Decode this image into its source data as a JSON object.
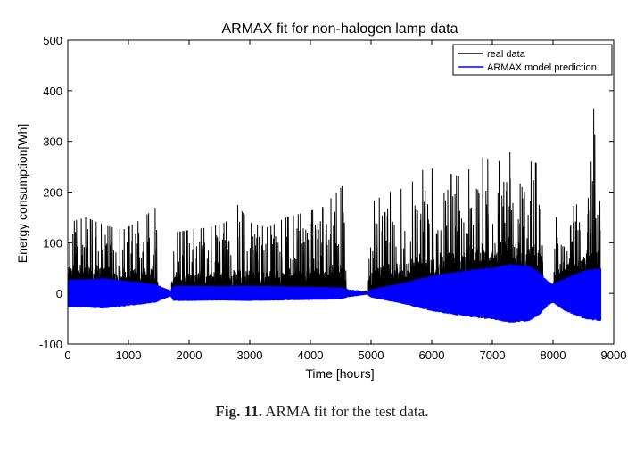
{
  "chart_data": {
    "type": "line",
    "title": "ARMAX fit for non-halogen lamp data",
    "xlabel": "Time [hours]",
    "ylabel": "Energy consumption[Wh]",
    "xlim": [
      0,
      9000
    ],
    "ylim": [
      -100,
      500
    ],
    "x_ticks": [
      "0",
      "1000",
      "2000",
      "3000",
      "4000",
      "5000",
      "6000",
      "7000",
      "8000",
      "9000"
    ],
    "y_ticks": [
      "-100",
      "0",
      "100",
      "200",
      "300",
      "400",
      "500"
    ],
    "grid": false,
    "legend_position": "top-right",
    "series": [
      {
        "name": "real data",
        "color": "#000000",
        "kind": "upper-envelope",
        "x": [
          0,
          300,
          600,
          900,
          1200,
          1450,
          1500,
          1700,
          1750,
          2000,
          2300,
          2600,
          2800,
          3000,
          3300,
          3600,
          3900,
          4200,
          4550,
          4600,
          4950,
          5000,
          5300,
          5600,
          5900,
          6200,
          6500,
          6800,
          7100,
          7300,
          7500,
          7800,
          7850,
          8000,
          8050,
          8300,
          8600,
          8680,
          8700,
          8780
        ],
        "values": [
          140,
          150,
          135,
          125,
          145,
          170,
          10,
          5,
          120,
          125,
          130,
          140,
          175,
          140,
          130,
          150,
          160,
          170,
          215,
          10,
          5,
          180,
          200,
          210,
          250,
          240,
          230,
          270,
          260,
          280,
          265,
          255,
          10,
          10,
          150,
          170,
          190,
          390,
          200,
          180
        ]
      },
      {
        "name": "ARMAX model prediction",
        "color": "#0000ff",
        "kind": "symmetric-band",
        "x": [
          0,
          300,
          600,
          900,
          1200,
          1450,
          1500,
          1700,
          1750,
          2000,
          2500,
          3000,
          3500,
          4000,
          4500,
          4600,
          4950,
          5000,
          5500,
          6000,
          6500,
          7000,
          7300,
          7600,
          7800,
          7900,
          8000,
          8200,
          8500,
          8780
        ],
        "upper": [
          27,
          28,
          30,
          26,
          22,
          18,
          15,
          5,
          15,
          15,
          14,
          15,
          14,
          13,
          12,
          8,
          2,
          8,
          20,
          35,
          45,
          52,
          58,
          55,
          40,
          25,
          18,
          30,
          45,
          50
        ],
        "lower": [
          -27,
          -28,
          -30,
          -26,
          -22,
          -18,
          -15,
          -5,
          -15,
          -15,
          -14,
          -15,
          -14,
          -13,
          -12,
          -8,
          -2,
          -8,
          -20,
          -35,
          -45,
          -52,
          -58,
          -55,
          -40,
          -25,
          -18,
          -35,
          -50,
          -55
        ]
      }
    ]
  },
  "caption": {
    "label": "Fig. 11.",
    "text": "ARMA fit for the test data."
  }
}
